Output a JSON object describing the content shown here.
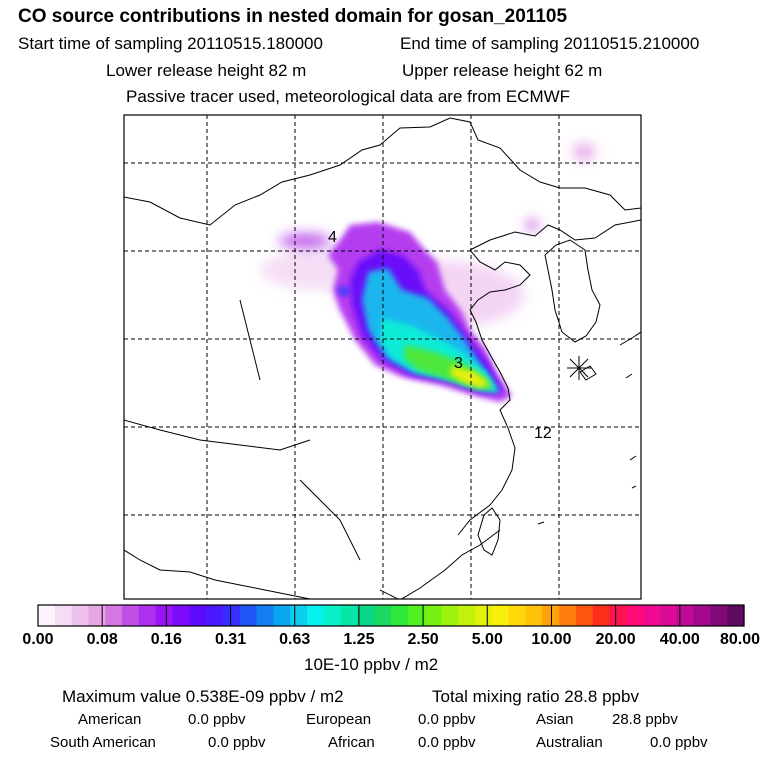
{
  "header": {
    "title": "CO  source contributions in nested domain for gosan_201105",
    "start_time": "Start time of sampling 20110515.180000",
    "end_time": "End time of sampling 20110515.210000",
    "lower_release": "Lower release height   82 m",
    "upper_release": "Upper release height   62 m",
    "tracer_note": "Passive tracer used, meteorological data are from ECMWF"
  },
  "map": {
    "markers": [
      {
        "label": "4"
      },
      {
        "label": "3"
      },
      {
        "label": "12"
      }
    ],
    "station_symbol": "asterisk-marker"
  },
  "colorbar": {
    "labels": [
      "0.00",
      "0.08",
      "0.16",
      "0.31",
      "0.63",
      "1.25",
      "2.50",
      "5.00",
      "10.00",
      "20.00",
      "40.00",
      "80.00"
    ],
    "colors": [
      "#fdf4fd",
      "#f7dcf6",
      "#efc2ee",
      "#e6a6e6",
      "#d577e0",
      "#c14fe6",
      "#ae2ff0",
      "#9a14f5",
      "#7d0bfa",
      "#5e0aff",
      "#4a1afe",
      "#3a2dff",
      "#1f55f7",
      "#127ef0",
      "#0aa6ee",
      "#0ecbf0",
      "#05f0ee",
      "#08f0c8",
      "#07e6a8",
      "#0ad68a",
      "#1ad860",
      "#2ee83a",
      "#50f022",
      "#76f012",
      "#9ef00e",
      "#c2f20c",
      "#e2f00a",
      "#f8f00a",
      "#ffd70a",
      "#ffc20a",
      "#ffa10a",
      "#ff7d0a",
      "#ff540f",
      "#ff2e1c",
      "#ff1450",
      "#ff0a78",
      "#f00a92",
      "#da0a96",
      "#c00a96",
      "#a2088c",
      "#820a78",
      "#5e0a5e"
    ],
    "units": "10E-10 ppbv / m2"
  },
  "stats": {
    "max_value": "Maximum value  0.538E-09 ppbv / m2",
    "total_mixing": "Total mixing ratio       28.8 ppbv",
    "american_label": "American",
    "american_value": "0.0 ppbv",
    "european_label": "European",
    "european_value": "0.0 ppbv",
    "asian_label": "Asian",
    "asian_value": "28.8 ppbv",
    "south_american_label": "South American",
    "south_american_value": "0.0 ppbv",
    "african_label": "African",
    "african_value": "0.0 ppbv",
    "australian_label": "Australian",
    "australian_value": "0.0 ppbv"
  }
}
